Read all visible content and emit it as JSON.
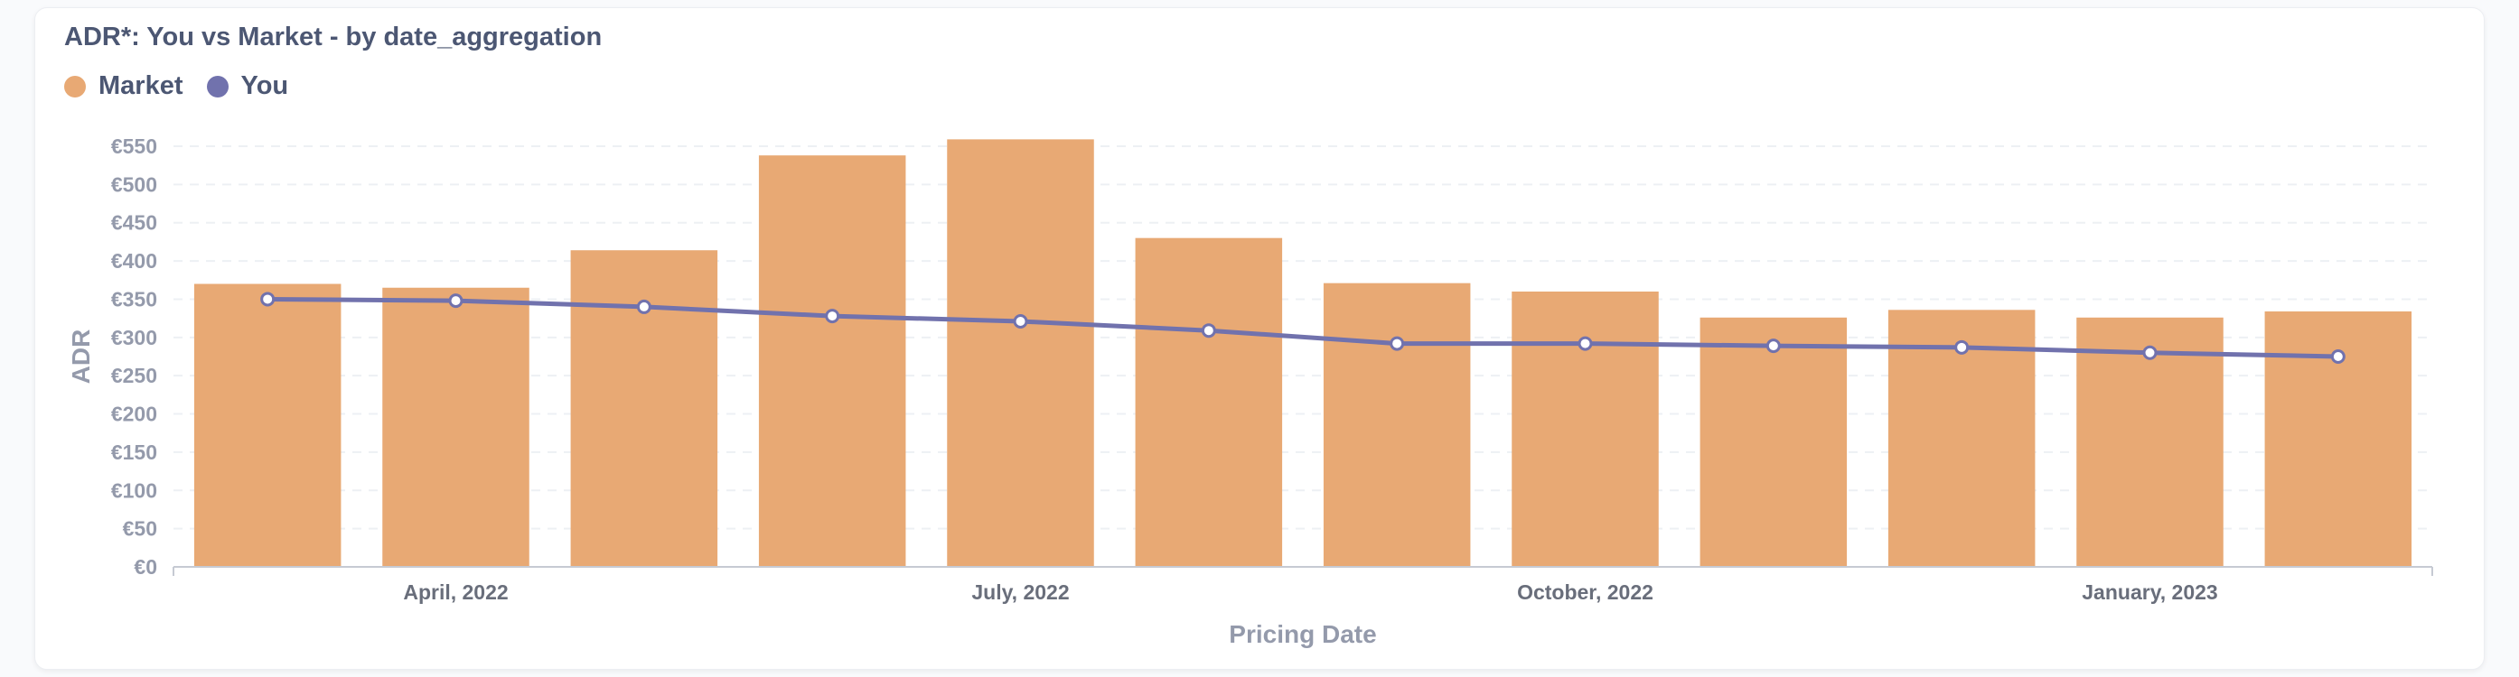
{
  "chart_data": {
    "type": "bar",
    "title": "ADR*: You vs Market - by date_aggregation",
    "xlabel": "Pricing Date",
    "ylabel": "ADR",
    "x": [
      "2022-03",
      "2022-04",
      "2022-05",
      "2022-06",
      "2022-07",
      "2022-08",
      "2022-09",
      "2022-10",
      "2022-11",
      "2022-12",
      "2023-01",
      "2023-02"
    ],
    "x_ticks": [
      {
        "month": "2022-04",
        "label": "April, 2022"
      },
      {
        "month": "2022-07",
        "label": "July, 2022"
      },
      {
        "month": "2022-10",
        "label": "October, 2022"
      },
      {
        "month": "2023-01",
        "label": "January, 2023"
      }
    ],
    "y_ticks": [
      {
        "value": 0,
        "label": "€0"
      },
      {
        "value": 50,
        "label": "€50"
      },
      {
        "value": 100,
        "label": "€100"
      },
      {
        "value": 150,
        "label": "€150"
      },
      {
        "value": 200,
        "label": "€200"
      },
      {
        "value": 250,
        "label": "€250"
      },
      {
        "value": 300,
        "label": "€300"
      },
      {
        "value": 350,
        "label": "€350"
      },
      {
        "value": 400,
        "label": "€400"
      },
      {
        "value": 450,
        "label": "€450"
      },
      {
        "value": 500,
        "label": "€500"
      },
      {
        "value": 550,
        "label": "€550"
      }
    ],
    "ylim": [
      0,
      550
    ],
    "grid": true,
    "legend_position": "top-left",
    "series": [
      {
        "name": "Market",
        "type": "bar",
        "color": "#e8a974",
        "values": [
          370,
          365,
          414,
          538,
          559,
          430,
          371,
          360,
          326,
          336,
          326,
          334
        ]
      },
      {
        "name": "You",
        "type": "line",
        "color": "#7172ad",
        "values": [
          350,
          348,
          340,
          328,
          321,
          309,
          292,
          292,
          289,
          287,
          280,
          275
        ]
      }
    ]
  }
}
